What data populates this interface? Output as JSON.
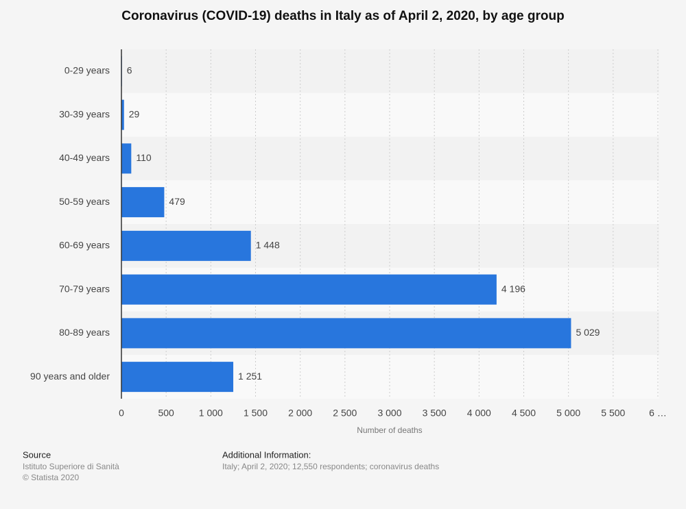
{
  "chart_data": {
    "type": "bar",
    "orientation": "horizontal",
    "title": "Coronavirus (COVID-19) deaths in Italy as of April 2, 2020, by age group",
    "categories": [
      "0-29 years",
      "30-39 years",
      "40-49 years",
      "50-59 years",
      "60-69 years",
      "70-79 years",
      "80-89 years",
      "90 years and older"
    ],
    "values": [
      6,
      29,
      110,
      479,
      1448,
      4196,
      5029,
      1251
    ],
    "value_labels": [
      "6",
      "29",
      "110",
      "479",
      "1 448",
      "4 196",
      "5 029",
      "1 251"
    ],
    "color": "#2876dd",
    "xlabel": "Number of deaths",
    "xlim": [
      0,
      6000
    ],
    "xticks": [
      0,
      500,
      {
        "value": 1000,
        "label": "1 000"
      },
      {
        "value": 1500,
        "label": "1 500"
      },
      {
        "value": 2000,
        "label": "2 000"
      },
      {
        "value": 2500,
        "label": "2 500"
      },
      {
        "value": 3000,
        "label": "3 000"
      },
      {
        "value": 3500,
        "label": "3 500"
      },
      {
        "value": 4000,
        "label": "4 000"
      },
      {
        "value": 4500,
        "label": "4 500"
      },
      {
        "value": 5000,
        "label": "5 000"
      },
      {
        "value": 5500,
        "label": "5 500"
      },
      {
        "value": 6000,
        "label": "6 …"
      }
    ],
    "grid": true
  },
  "footer": {
    "source_heading": "Source",
    "source": "Istituto Superiore di Sanità",
    "copyright": "© Statista 2020",
    "info_heading": "Additional Information:",
    "info": "Italy; April 2, 2020; 12,550 respondents; coronavirus deaths"
  }
}
